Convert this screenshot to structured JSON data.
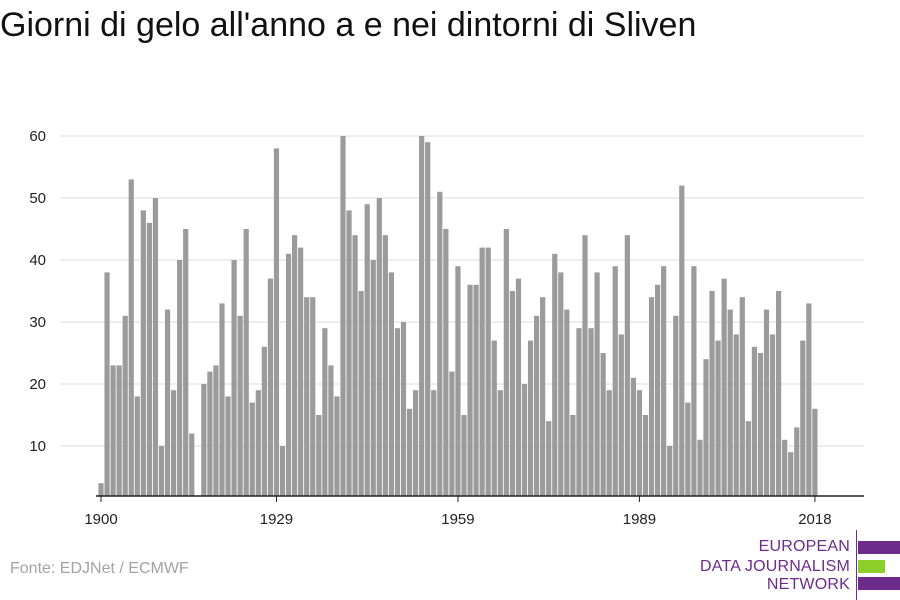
{
  "title": "Giorni di gelo all'anno a e nei dintorni di Sliven",
  "source": "Fonte: EDJNet / ECMWF",
  "logo": {
    "lines": [
      "EUROPEAN",
      "DATA JOURNALISM",
      "NETWORK"
    ],
    "colors": {
      "purple": "#6d2c8c",
      "green": "#8ccf2a"
    }
  },
  "colors": {
    "bar": "#9b9b9b",
    "grid": "#dddddd",
    "axis": "#222222",
    "tick_text": "#222222"
  },
  "chart_data": {
    "type": "bar",
    "x": [
      1900,
      1901,
      1902,
      1903,
      1904,
      1905,
      1906,
      1907,
      1908,
      1909,
      1910,
      1911,
      1912,
      1913,
      1914,
      1915,
      1916,
      1917,
      1918,
      1919,
      1920,
      1921,
      1922,
      1923,
      1924,
      1925,
      1926,
      1927,
      1928,
      1929,
      1930,
      1931,
      1932,
      1933,
      1934,
      1935,
      1936,
      1937,
      1938,
      1939,
      1940,
      1941,
      1942,
      1943,
      1944,
      1945,
      1946,
      1947,
      1948,
      1949,
      1950,
      1951,
      1952,
      1953,
      1954,
      1955,
      1956,
      1957,
      1958,
      1959,
      1960,
      1961,
      1962,
      1963,
      1964,
      1965,
      1966,
      1967,
      1968,
      1969,
      1970,
      1971,
      1972,
      1973,
      1974,
      1975,
      1976,
      1977,
      1978,
      1979,
      1980,
      1981,
      1982,
      1983,
      1984,
      1985,
      1986,
      1987,
      1988,
      1989,
      1990,
      1991,
      1992,
      1993,
      1994,
      1995,
      1996,
      1997,
      1998,
      1999,
      2000,
      2001,
      2002,
      2003,
      2004,
      2005,
      2006,
      2007,
      2008,
      2009,
      2010,
      2011,
      2012,
      2013,
      2014,
      2015,
      2016,
      2017,
      2018
    ],
    "values": [
      4,
      38,
      23,
      23,
      31,
      53,
      18,
      48,
      46,
      50,
      10,
      32,
      19,
      40,
      45,
      12,
      null,
      20,
      22,
      23,
      33,
      18,
      40,
      31,
      45,
      17,
      19,
      26,
      37,
      58,
      10,
      41,
      44,
      42,
      34,
      34,
      15,
      29,
      23,
      18,
      60,
      48,
      44,
      35,
      49,
      40,
      50,
      44,
      38,
      29,
      30,
      16,
      19,
      60,
      59,
      19,
      51,
      45,
      22,
      39,
      15,
      36,
      36,
      42,
      42,
      27,
      19,
      45,
      35,
      37,
      20,
      27,
      31,
      34,
      14,
      41,
      38,
      32,
      15,
      29,
      44,
      29,
      38,
      25,
      19,
      39,
      28,
      44,
      21,
      19,
      15,
      34,
      36,
      39,
      10,
      31,
      52,
      17,
      39,
      11,
      24,
      35,
      27,
      37,
      32,
      28,
      34,
      14,
      26,
      25,
      32,
      28,
      35,
      11,
      9,
      13,
      27,
      33,
      16
    ],
    "xticks": [
      "1900",
      "1929",
      "1959",
      "1989",
      "2018"
    ],
    "yticks": [
      "10",
      "20",
      "30",
      "40",
      "50",
      "60"
    ],
    "xlim": [
      1900,
      2018
    ],
    "ylim": [
      3,
      60
    ],
    "grid": true
  }
}
